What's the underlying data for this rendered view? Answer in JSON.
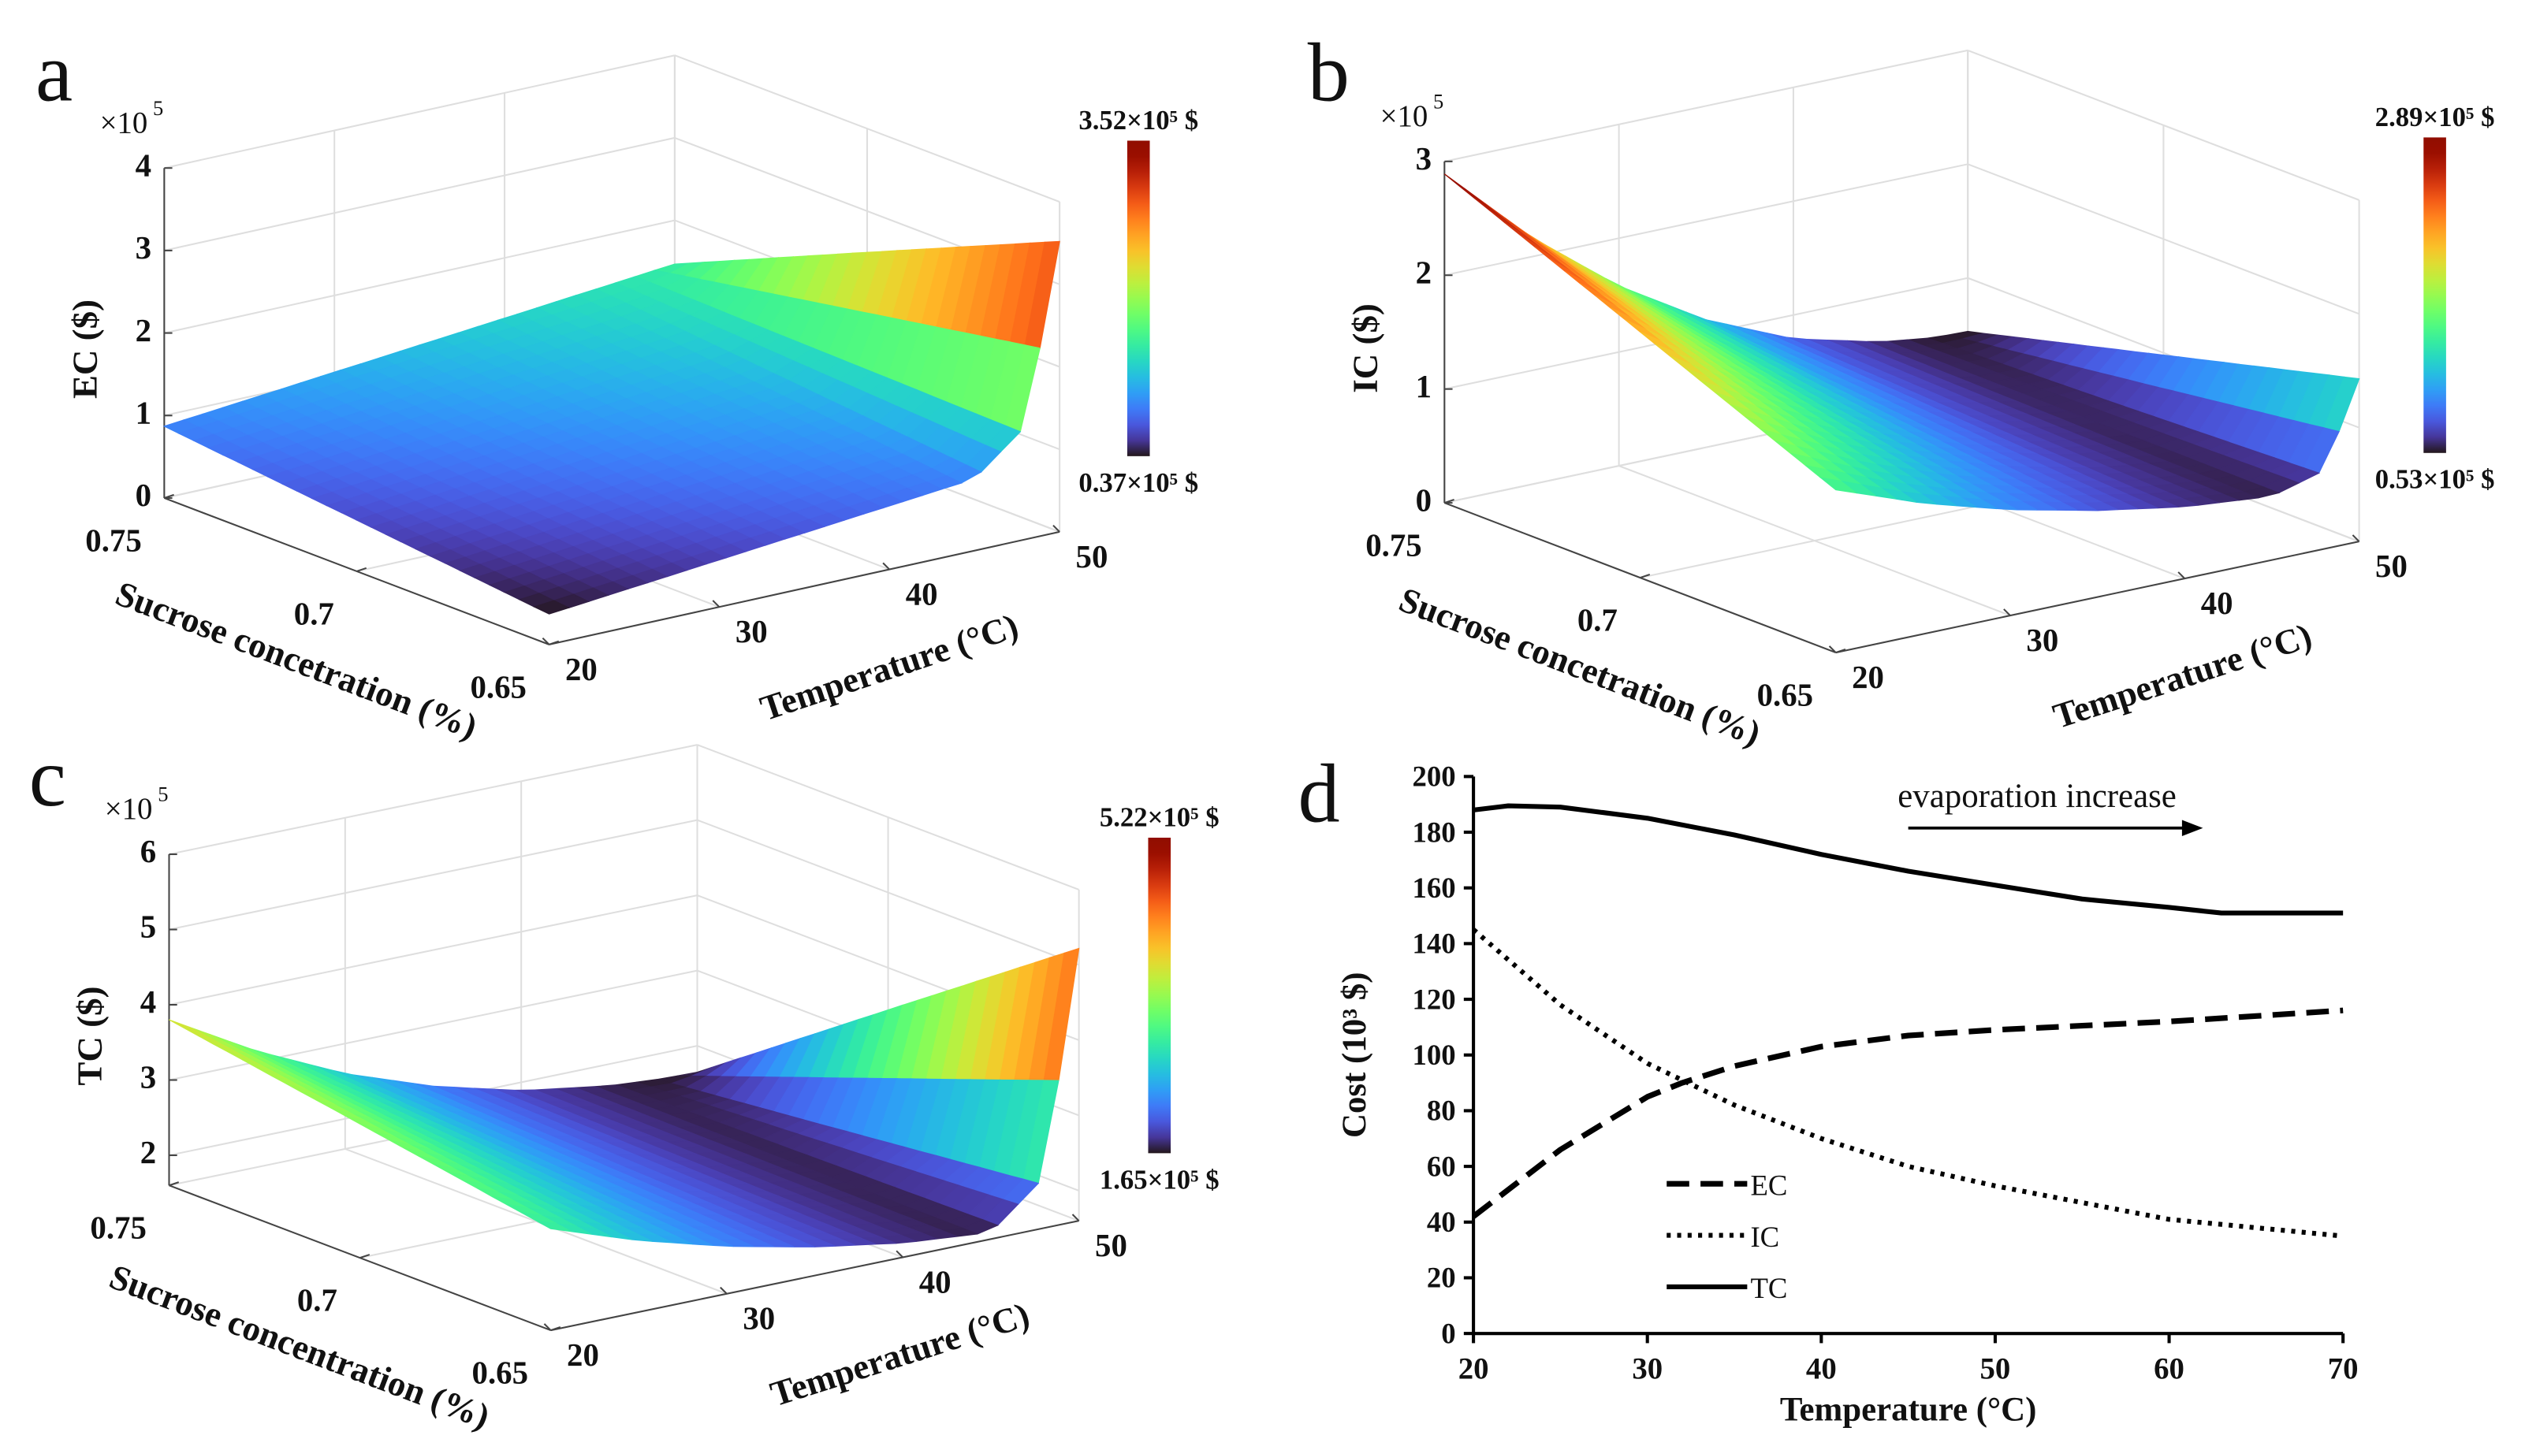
{
  "chart_data": [
    {
      "panel": "a",
      "type": "surface",
      "zlabel": "EC ($)",
      "xlabel": "Sucrose concetration (%)",
      "ylabel": "Temperature (°C)",
      "multiplier": "×10",
      "multiplier_exp": "5",
      "s_ticks": [
        "0.75",
        "0.7",
        "0.65"
      ],
      "s_tick_values": [
        0.75,
        0.7,
        0.65
      ],
      "T_ticks": [
        "20",
        "30",
        "40",
        "50"
      ],
      "T_tick_values": [
        20,
        30,
        40,
        50
      ],
      "z_ticks": [
        "0",
        "1",
        "2",
        "3",
        "4"
      ],
      "z_tick_values": [
        0,
        1,
        2,
        3,
        4
      ],
      "zlim": [
        0,
        4
      ],
      "colorbar": {
        "max_label": "3.52×10⁵ $",
        "min_label": "0.37×10⁵ $",
        "max": 3.52,
        "min": 0.37
      },
      "grid_s": [
        0.65,
        0.7,
        0.75
      ],
      "grid_T": [
        20,
        25,
        30,
        35,
        40,
        45,
        48,
        50
      ],
      "z": [
        [
          0.37,
          0.47,
          0.57,
          0.67,
          0.77,
          0.87,
          1.37,
          3.52
        ],
        [
          0.62,
          0.72,
          0.82,
          0.92,
          1.02,
          1.12,
          1.4,
          2.5
        ],
        [
          0.87,
          0.97,
          1.07,
          1.17,
          1.27,
          1.37,
          1.43,
          1.47
        ]
      ]
    },
    {
      "panel": "b",
      "type": "surface",
      "zlabel": "IC ($)",
      "xlabel": "Sucrose concetration (%)",
      "ylabel": "Temperature (°C)",
      "multiplier": "×10",
      "multiplier_exp": "5",
      "s_ticks": [
        "0.75",
        "0.7",
        "0.65"
      ],
      "s_tick_values": [
        0.75,
        0.7,
        0.65
      ],
      "T_ticks": [
        "20",
        "30",
        "40",
        "50"
      ],
      "T_tick_values": [
        20,
        30,
        40,
        50
      ],
      "z_ticks": [
        "0",
        "1",
        "2",
        "3"
      ],
      "z_tick_values": [
        0,
        1,
        2,
        3
      ],
      "zlim": [
        0,
        3
      ],
      "colorbar": {
        "max_label": "2.89×10⁵ $",
        "min_label": "0.53×10⁵ $",
        "max": 2.89,
        "min": 0.53
      },
      "grid_s": [
        0.65,
        0.7,
        0.75
      ],
      "grid_T": [
        20,
        25,
        30,
        35,
        40,
        45,
        48,
        50
      ],
      "z": [
        [
          1.43,
          1.15,
          0.93,
          0.76,
          0.63,
          0.56,
          0.69,
          1.43
        ],
        [
          2.16,
          1.66,
          1.25,
          0.94,
          0.71,
          0.58,
          0.61,
          0.98
        ],
        [
          2.89,
          2.17,
          1.58,
          1.12,
          0.79,
          0.6,
          0.54,
          0.53
        ]
      ]
    },
    {
      "panel": "c",
      "type": "surface",
      "zlabel": "TC ($)",
      "xlabel": "Sucrose concentration (%)",
      "ylabel": "Temperature (°C)",
      "multiplier": "×10",
      "multiplier_exp": "5",
      "s_ticks": [
        "0.75",
        "0.7",
        "0.65"
      ],
      "s_tick_values": [
        0.75,
        0.7,
        0.65
      ],
      "T_ticks": [
        "20",
        "30",
        "40",
        "50"
      ],
      "T_tick_values": [
        20,
        30,
        40,
        50
      ],
      "z_ticks": [
        "2",
        "3",
        "4",
        "5",
        "6"
      ],
      "z_tick_values": [
        2,
        3,
        4,
        5,
        6
      ],
      "zlim": [
        1.6,
        6
      ],
      "colorbar": {
        "max_label": "5.22×10⁵ $",
        "min_label": "1.65×10⁵ $",
        "max": 5.22,
        "min": 1.65
      },
      "grid_s": [
        0.65,
        0.7,
        0.75
      ],
      "grid_T": [
        20,
        25,
        30,
        35,
        40,
        45,
        48,
        50
      ],
      "z": [
        [
          2.95,
          2.55,
          2.23,
          1.98,
          1.79,
          1.69,
          2.27,
          5.22
        ],
        [
          3.38,
          2.85,
          2.42,
          2.08,
          1.84,
          1.7,
          1.96,
          3.44
        ],
        [
          3.8,
          3.14,
          2.6,
          2.19,
          1.89,
          1.71,
          1.66,
          1.65
        ]
      ]
    },
    {
      "panel": "d",
      "type": "line",
      "xlabel": "Temperature (°C)",
      "ylabel": "Cost (10³ $)",
      "xlim": [
        20,
        70
      ],
      "ylim": [
        0,
        200
      ],
      "x_ticks": [
        20,
        30,
        40,
        50,
        60,
        70
      ],
      "y_ticks": [
        0,
        20,
        40,
        60,
        80,
        100,
        120,
        140,
        160,
        180,
        200
      ],
      "annotation": "evaporation increase",
      "legend_position": "lower-left",
      "series": [
        {
          "name": "EC",
          "style": "dashed",
          "x": [
            20,
            25,
            30,
            32,
            35,
            40,
            45,
            50,
            55,
            60,
            65,
            70
          ],
          "y": [
            42,
            66,
            85,
            90,
            96,
            103,
            107,
            109,
            110.5,
            112,
            114,
            116
          ]
        },
        {
          "name": "IC",
          "style": "dotted",
          "x": [
            20,
            25,
            30,
            35,
            40,
            45,
            50,
            55,
            60,
            65,
            70
          ],
          "y": [
            145,
            118,
            97,
            82,
            70,
            60,
            53,
            47,
            41,
            38,
            35
          ]
        },
        {
          "name": "TC",
          "style": "solid",
          "x": [
            20,
            22,
            25,
            30,
            35,
            40,
            45,
            50,
            55,
            60,
            63,
            65,
            70
          ],
          "y": [
            188,
            189.5,
            189,
            185,
            179,
            172,
            166,
            161,
            156,
            153,
            151,
            151,
            151
          ]
        }
      ]
    }
  ]
}
